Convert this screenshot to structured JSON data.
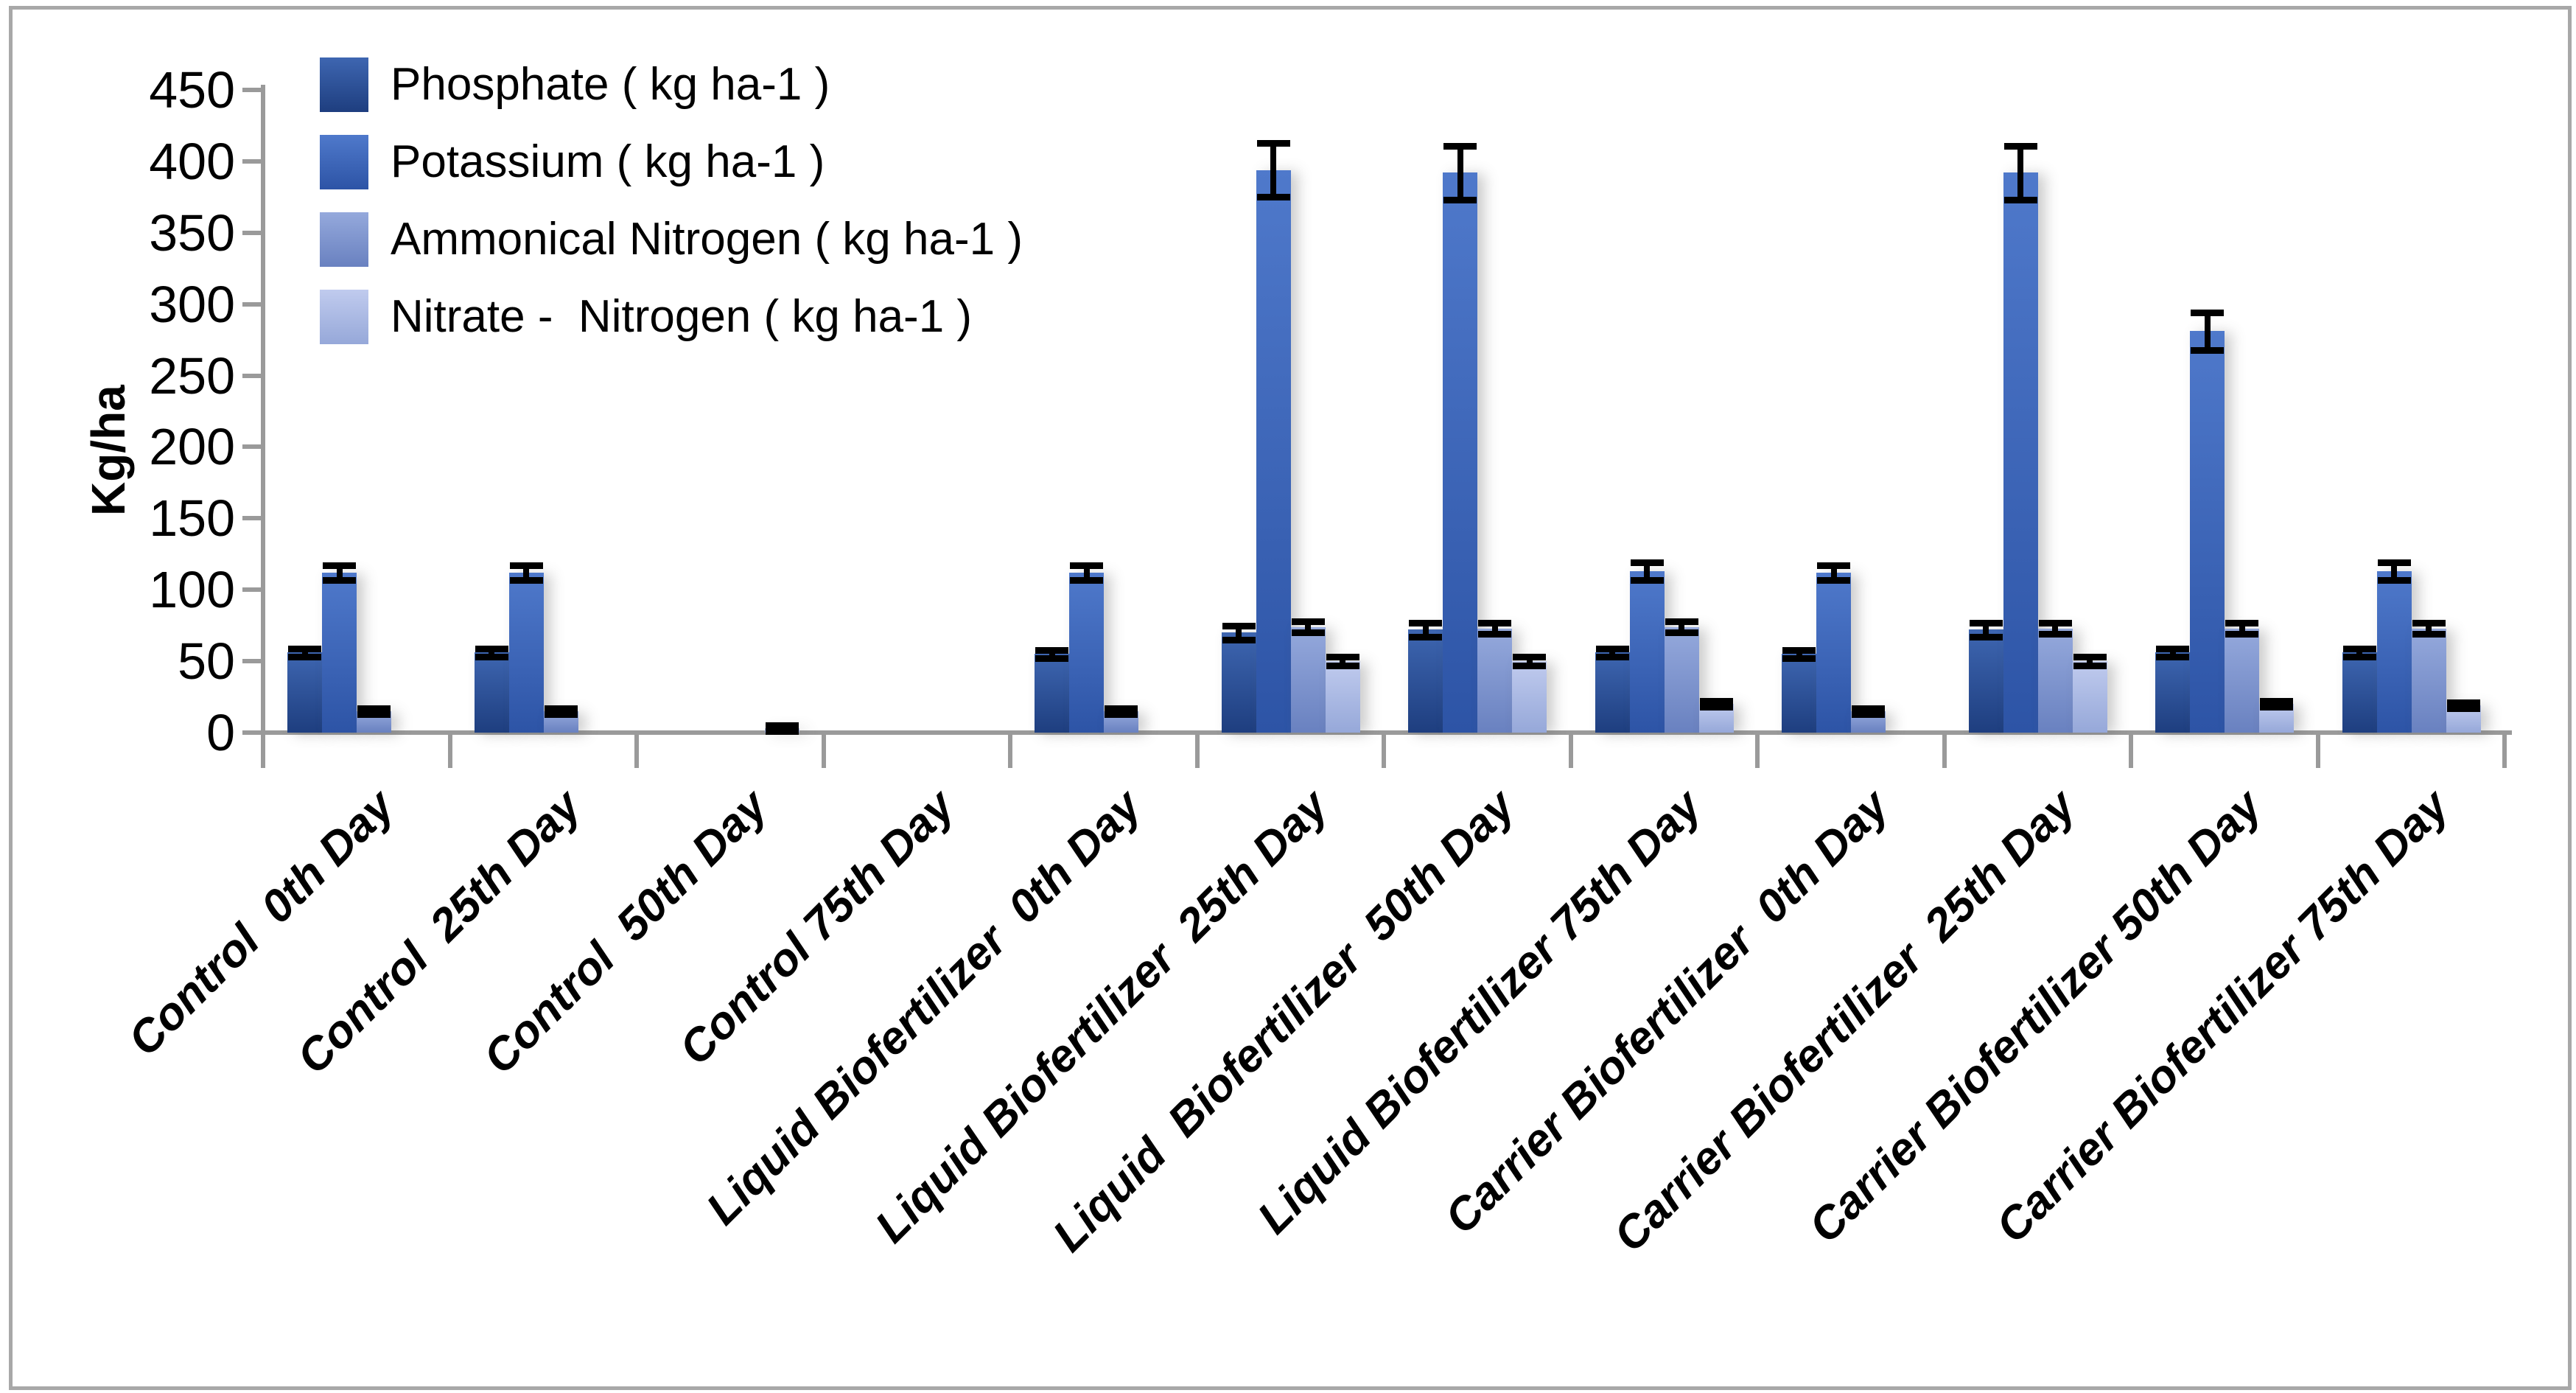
{
  "figure": {
    "ylabel": "Kg/ha",
    "axis_color": "#9a9a9a",
    "error_bar_color": "#000000",
    "frame_border_color": "#a8a8a8"
  },
  "chart_data": {
    "type": "bar",
    "title": "",
    "xlabel": "",
    "ylabel": "Kg/ha",
    "ylim": [
      0,
      450
    ],
    "ytick_step": 50,
    "ytick_labels": [
      "0",
      "50",
      "100",
      "150",
      "200",
      "250",
      "300",
      "350",
      "400",
      "450"
    ],
    "grid": false,
    "legend_position": "top-left",
    "error_bars": true,
    "categories": [
      "Control  0th Day",
      "Control  25th Day",
      "Control  50th Day",
      "Control 75th Day",
      "Liquid Biofertilizer  0th Day",
      "Liquid Biofertilizer  25th Day",
      "Liquid  Biofertilizer  50th Day",
      "Liquid Biofertilizer 75th Day",
      "Carrier Biofertilizer  0th Day",
      "Carrier Biofertilizer  25th Day",
      "Carrier Biofertilizer 50th Day",
      "Carrier Biofertilizer 75th Day"
    ],
    "series": [
      {
        "name": "Phosphate ( kg ha-1 )",
        "color_top": "#3e66b1",
        "color_bottom": "#1e3e7f",
        "values": [
          56,
          56,
          0,
          0,
          55,
          70,
          72,
          56,
          55,
          72,
          56,
          56
        ],
        "errors": [
          3,
          3,
          0,
          0,
          3,
          5,
          5,
          3,
          3,
          5,
          3,
          3
        ]
      },
      {
        "name": "Potassium ( kg ha-1 )",
        "color_top": "#4f79cb",
        "color_bottom": "#2d54a6",
        "values": [
          112,
          112,
          0,
          0,
          112,
          394,
          392,
          113,
          112,
          392,
          281,
          113
        ],
        "errors": [
          5,
          5,
          0,
          0,
          5,
          19,
          19,
          6,
          5,
          19,
          13,
          6
        ]
      },
      {
        "name": "Ammonical Nitrogen ( kg ha-1 )",
        "color_top": "#95a9dc",
        "color_bottom": "#6981c0",
        "values": [
          15,
          15,
          0,
          0,
          15,
          74,
          73,
          74,
          15,
          73,
          73,
          73
        ],
        "errors": [
          2,
          2,
          0,
          0,
          2,
          4,
          4,
          4,
          2,
          4,
          4,
          4
        ]
      },
      {
        "name": "Nitrate -  Nitrogen ( kg ha-1 )",
        "color_top": "#c0cbee",
        "color_bottom": "#96a8d9",
        "values": [
          0,
          0,
          3,
          0,
          0,
          50,
          50,
          20,
          0,
          50,
          20,
          19
        ],
        "errors": [
          0,
          0,
          2,
          0,
          0,
          3,
          3,
          2,
          0,
          3,
          2,
          2
        ]
      }
    ]
  }
}
